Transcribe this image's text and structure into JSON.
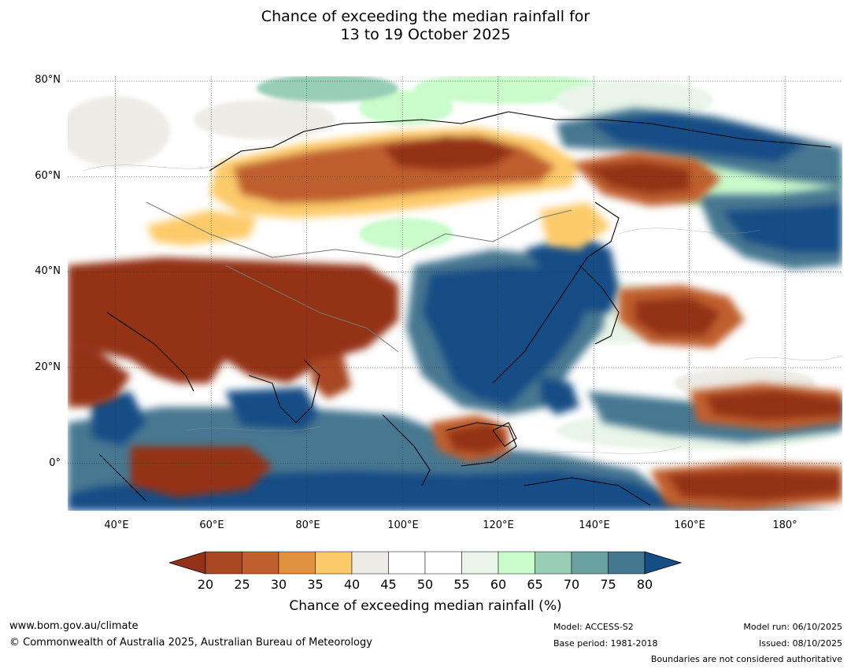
{
  "title": {
    "line1": "Chance of exceeding the median rainfall for",
    "line2": "13 to 19 October 2025"
  },
  "map": {
    "latitude_labels": [
      "80°N",
      "60°N",
      "40°N",
      "20°N",
      "0°"
    ],
    "longitude_labels": [
      "40°E",
      "60°E",
      "80°E",
      "100°E",
      "120°E",
      "140°E",
      "160°E",
      "180°"
    ],
    "extent": {
      "lon_min": 30,
      "lon_max": 192,
      "lat_min": -10,
      "lat_max": 81
    }
  },
  "colorbar": {
    "label": "Chance of exceeding median rainfall (%)",
    "ticks": [
      "20",
      "25",
      "30",
      "35",
      "40",
      "45",
      "50",
      "55",
      "60",
      "65",
      "70",
      "75",
      "80"
    ],
    "colors": {
      "below20": "#943119",
      "c20_25": "#a94723",
      "c25_30": "#c05f2e",
      "c30_35": "#df9140",
      "c35_40": "#fdca6b",
      "c40_45": "#edebe5",
      "c45_50": "#ffffff",
      "c50_55": "#ffffff",
      "c55_60": "#e9f5e8",
      "c60_65": "#c9fbcb",
      "c65_70": "#98cdb6",
      "c70_75": "#6ba0a1",
      "c75_80": "#467791",
      "above80": "#154d86"
    }
  },
  "footer": {
    "website": "www.bom.gov.au/climate",
    "copyright": "© Commonwealth of Australia 2025, Australian Bureau of Meteorology",
    "model": "Model: ACCESS-S2",
    "base_period": "Base period: 1981-2018",
    "model_run": "Model run: 06/10/2025",
    "issued": "Issued: 08/10/2025",
    "disclaimer": "Boundaries are not considered authoritative"
  }
}
